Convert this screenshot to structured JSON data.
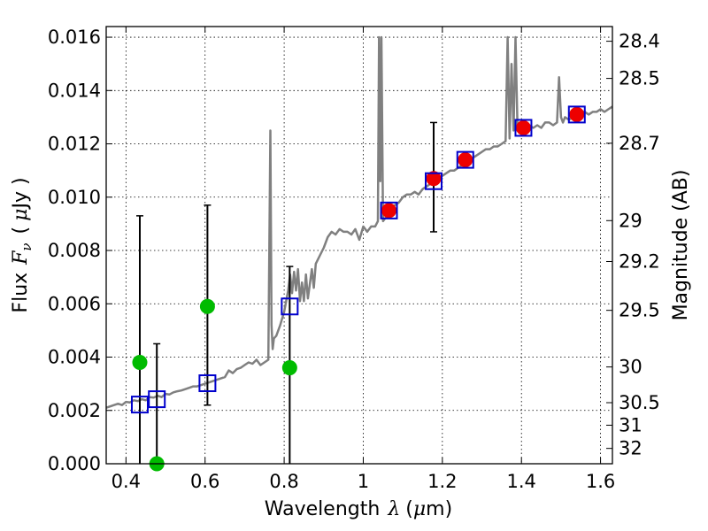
{
  "chart_data": {
    "type": "scatter",
    "xlabel": "Wavelength",
    "xlabel_symbol": "λ",
    "xlabel_unit_open": "(",
    "xlabel_unit_mu": "μ",
    "xlabel_unit_rest": "m)",
    "ylabel": "Flux",
    "ylabel_symbol_F": "F",
    "ylabel_symbol_nu": "ν",
    "ylabel_unit_open": "(",
    "ylabel_unit_mu": "μ",
    "ylabel_unit_rest": "Jy )",
    "y2label": "Magnitude (AB)",
    "xlim": [
      0.35,
      1.63
    ],
    "ylim": [
      0.0,
      0.0164
    ],
    "grid": true,
    "x_ticks": [
      0.4,
      0.6,
      0.8,
      1.0,
      1.2,
      1.4,
      1.6
    ],
    "x_tick_labels": [
      "0.4",
      "0.6",
      "0.8",
      "1",
      "1.2",
      "1.4",
      "1.6"
    ],
    "y_ticks": [
      0.0,
      0.002,
      0.004,
      0.006,
      0.008,
      0.01,
      0.012,
      0.014,
      0.016
    ],
    "y_tick_labels": [
      "0.000",
      "0.002",
      "0.004",
      "0.006",
      "0.008",
      "0.010",
      "0.012",
      "0.014",
      "0.016"
    ],
    "y2_ticks": [
      28.4,
      28.5,
      28.7,
      29,
      29.2,
      29.5,
      30,
      30.5,
      31,
      32
    ],
    "y2_tick_labels": [
      "28.4",
      "28.5",
      "28.7",
      "29",
      "29.2",
      "29.5",
      "30",
      "30.5",
      "31",
      "32"
    ],
    "colors": {
      "template": "#808080",
      "model_box": "#0000cc",
      "observed_green": "#00bb00",
      "observed_red": "#ee0000",
      "errorbar": "#000000"
    },
    "series": [
      {
        "name": "template_spectrum",
        "type": "line",
        "x": [
          0.35,
          0.36,
          0.37,
          0.38,
          0.39,
          0.4,
          0.41,
          0.42,
          0.43,
          0.44,
          0.45,
          0.46,
          0.47,
          0.48,
          0.49,
          0.5,
          0.51,
          0.52,
          0.53,
          0.54,
          0.55,
          0.56,
          0.57,
          0.58,
          0.59,
          0.6,
          0.61,
          0.62,
          0.63,
          0.64,
          0.65,
          0.66,
          0.67,
          0.68,
          0.69,
          0.7,
          0.71,
          0.72,
          0.73,
          0.74,
          0.75,
          0.76,
          0.765,
          0.768,
          0.771,
          0.774,
          0.78,
          0.79,
          0.8,
          0.81,
          0.815,
          0.82,
          0.825,
          0.83,
          0.835,
          0.84,
          0.845,
          0.85,
          0.855,
          0.86,
          0.87,
          0.875,
          0.88,
          0.89,
          0.9,
          0.91,
          0.92,
          0.93,
          0.94,
          0.95,
          0.96,
          0.97,
          0.98,
          0.99,
          1.0,
          1.01,
          1.02,
          1.03,
          1.037,
          1.04,
          1.043,
          1.046,
          1.05,
          1.06,
          1.07,
          1.08,
          1.09,
          1.1,
          1.11,
          1.12,
          1.13,
          1.14,
          1.15,
          1.16,
          1.17,
          1.18,
          1.19,
          1.2,
          1.21,
          1.22,
          1.23,
          1.24,
          1.25,
          1.26,
          1.27,
          1.28,
          1.29,
          1.3,
          1.31,
          1.32,
          1.33,
          1.34,
          1.35,
          1.36,
          1.365,
          1.37,
          1.375,
          1.38,
          1.385,
          1.39,
          1.4,
          1.41,
          1.42,
          1.43,
          1.44,
          1.45,
          1.46,
          1.47,
          1.48,
          1.49,
          1.495,
          1.5,
          1.505,
          1.51,
          1.52,
          1.53,
          1.54,
          1.55,
          1.56,
          1.57,
          1.58,
          1.59,
          1.6,
          1.61,
          1.62,
          1.63
        ],
        "y": [
          0.0021,
          0.00215,
          0.0022,
          0.00225,
          0.0022,
          0.00232,
          0.0023,
          0.00238,
          0.00235,
          0.00242,
          0.00238,
          0.0025,
          0.00248,
          0.00255,
          0.0025,
          0.00262,
          0.0026,
          0.00268,
          0.00272,
          0.00275,
          0.0028,
          0.00285,
          0.0029,
          0.0029,
          0.00295,
          0.003,
          0.00305,
          0.0031,
          0.00315,
          0.0032,
          0.00325,
          0.0035,
          0.0034,
          0.00355,
          0.0036,
          0.0037,
          0.0038,
          0.00375,
          0.0039,
          0.0037,
          0.0038,
          0.0039,
          0.0125,
          0.0052,
          0.0043,
          0.0047,
          0.0048,
          0.0052,
          0.0057,
          0.0065,
          0.0071,
          0.0064,
          0.0072,
          0.0065,
          0.0073,
          0.0061,
          0.0068,
          0.0061,
          0.0071,
          0.0062,
          0.0073,
          0.0066,
          0.0075,
          0.0078,
          0.0081,
          0.0085,
          0.0087,
          0.0086,
          0.0088,
          0.0087,
          0.0087,
          0.0086,
          0.0088,
          0.0084,
          0.0089,
          0.0087,
          0.0089,
          0.0089,
          0.0091,
          0.016,
          0.0106,
          0.016,
          0.0091,
          0.0093,
          0.0096,
          0.0097,
          0.0098,
          0.01,
          0.0101,
          0.0101,
          0.0102,
          0.0101,
          0.0103,
          0.0104,
          0.0105,
          0.0106,
          0.0107,
          0.0108,
          0.0109,
          0.011,
          0.011,
          0.0111,
          0.0112,
          0.0113,
          0.0114,
          0.0115,
          0.0116,
          0.0117,
          0.0118,
          0.0118,
          0.0119,
          0.0119,
          0.012,
          0.0121,
          0.016,
          0.0122,
          0.015,
          0.0125,
          0.016,
          0.0125,
          0.0126,
          0.0126,
          0.0127,
          0.0126,
          0.0127,
          0.0126,
          0.0128,
          0.0128,
          0.0127,
          0.0128,
          0.0145,
          0.013,
          0.0128,
          0.013,
          0.0129,
          0.013,
          0.0131,
          0.0132,
          0.0132,
          0.0131,
          0.0132,
          0.0132,
          0.0133,
          0.0132,
          0.0133,
          0.0134
        ]
      },
      {
        "name": "model_fluxes",
        "type": "square_marker",
        "x": [
          0.435,
          0.478,
          0.606,
          0.814,
          1.065,
          1.178,
          1.258,
          1.405,
          1.54
        ],
        "y": [
          0.00222,
          0.00242,
          0.00302,
          0.0059,
          0.0095,
          0.0106,
          0.0114,
          0.0126,
          0.0131
        ]
      },
      {
        "name": "observed_fluxes_green",
        "type": "circle_marker",
        "x": [
          0.435,
          0.478,
          0.606,
          0.814
        ],
        "y": [
          0.0038,
          0.0,
          0.0059,
          0.0036
        ],
        "err_low": [
          0.0038,
          0.0,
          0.0037,
          0.0036
        ],
        "err_high": [
          0.0055,
          0.0045,
          0.0038,
          0.0038
        ]
      },
      {
        "name": "observed_fluxes_red",
        "type": "circle_marker",
        "x": [
          1.065,
          1.178,
          1.258,
          1.405,
          1.54
        ],
        "y": [
          0.0095,
          0.0107,
          0.0114,
          0.0126,
          0.0131
        ],
        "err_low": [
          0.0,
          0.002,
          0.0,
          0.0,
          0.0
        ],
        "err_high": [
          0.0,
          0.0021,
          0.0,
          0.0,
          0.0
        ]
      }
    ]
  }
}
